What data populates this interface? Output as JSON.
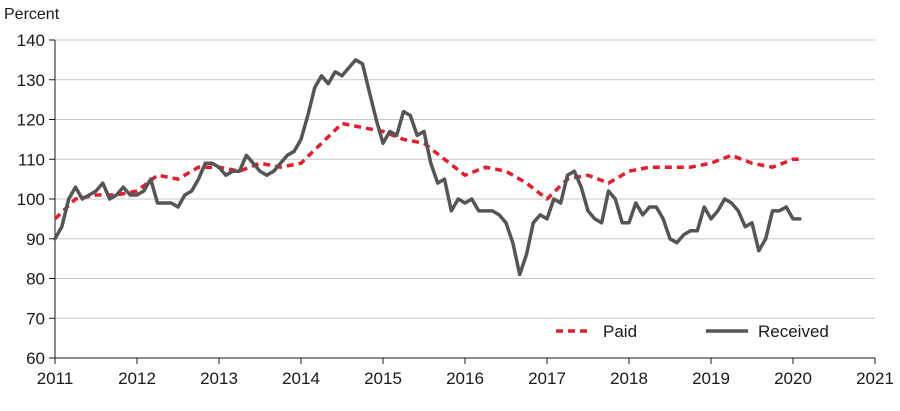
{
  "chart_data": {
    "type": "line",
    "title": "",
    "ylabel": "Percent",
    "xlabel": "",
    "ylim": [
      60,
      140
    ],
    "yticks": [
      60,
      70,
      80,
      90,
      100,
      110,
      120,
      130,
      140
    ],
    "xlim": [
      2011,
      2021
    ],
    "xticks": [
      2011,
      2012,
      2013,
      2014,
      2015,
      2016,
      2017,
      2018,
      2019,
      2020,
      2021
    ],
    "grid": "horizontal",
    "legend_position": "bottom-right",
    "series": [
      {
        "name": "Paid",
        "color": "#e31e2d",
        "style": "dashed",
        "x": [
          2011.0,
          2011.25,
          2011.5,
          2011.75,
          2012.0,
          2012.25,
          2012.5,
          2012.75,
          2013.0,
          2013.25,
          2013.5,
          2013.75,
          2014.0,
          2014.25,
          2014.5,
          2014.75,
          2015.0,
          2015.25,
          2015.5,
          2015.75,
          2016.0,
          2016.25,
          2016.5,
          2016.75,
          2017.0,
          2017.25,
          2017.5,
          2017.75,
          2018.0,
          2018.25,
          2018.5,
          2018.75,
          2019.0,
          2019.25,
          2019.5,
          2019.75,
          2020.0,
          2020.083
        ],
        "values": [
          95,
          100,
          101,
          101,
          102,
          106,
          105,
          108,
          108,
          107,
          109,
          108,
          109,
          114,
          119,
          118,
          117,
          115,
          114,
          110,
          106,
          108,
          107,
          104,
          100,
          105,
          106,
          104,
          107,
          108,
          108,
          108,
          109,
          111,
          109,
          108,
          110,
          110
        ]
      },
      {
        "name": "Received",
        "color": "#555555",
        "style": "solid",
        "x": [
          2011.0,
          2011.083,
          2011.167,
          2011.25,
          2011.333,
          2011.417,
          2011.5,
          2011.583,
          2011.667,
          2011.75,
          2011.833,
          2011.917,
          2012.0,
          2012.083,
          2012.167,
          2012.25,
          2012.333,
          2012.417,
          2012.5,
          2012.583,
          2012.667,
          2012.75,
          2012.833,
          2012.917,
          2013.0,
          2013.083,
          2013.167,
          2013.25,
          2013.333,
          2013.417,
          2013.5,
          2013.583,
          2013.667,
          2013.75,
          2013.833,
          2013.917,
          2014.0,
          2014.083,
          2014.167,
          2014.25,
          2014.333,
          2014.417,
          2014.5,
          2014.583,
          2014.667,
          2014.75,
          2014.833,
          2014.917,
          2015.0,
          2015.083,
          2015.167,
          2015.25,
          2015.333,
          2015.417,
          2015.5,
          2015.583,
          2015.667,
          2015.75,
          2015.833,
          2015.917,
          2016.0,
          2016.083,
          2016.167,
          2016.25,
          2016.333,
          2016.417,
          2016.5,
          2016.583,
          2016.667,
          2016.75,
          2016.833,
          2016.917,
          2017.0,
          2017.083,
          2017.167,
          2017.25,
          2017.333,
          2017.417,
          2017.5,
          2017.583,
          2017.667,
          2017.75,
          2017.833,
          2017.917,
          2018.0,
          2018.083,
          2018.167,
          2018.25,
          2018.333,
          2018.417,
          2018.5,
          2018.583,
          2018.667,
          2018.75,
          2018.833,
          2018.917,
          2019.0,
          2019.083,
          2019.167,
          2019.25,
          2019.333,
          2019.417,
          2019.5,
          2019.583,
          2019.667,
          2019.75,
          2019.833,
          2019.917,
          2020.0,
          2020.083
        ],
        "values": [
          90,
          93,
          100,
          103,
          100,
          101,
          102,
          104,
          100,
          101,
          103,
          101,
          101,
          102,
          105,
          99,
          99,
          99,
          98,
          101,
          102,
          105,
          109,
          109,
          108,
          106,
          107,
          107,
          111,
          109,
          107,
          106,
          107,
          109,
          111,
          112,
          115,
          121,
          128,
          131,
          129,
          132,
          131,
          133,
          135,
          134,
          127,
          120,
          114,
          117,
          116,
          122,
          121,
          116,
          117,
          109,
          104,
          105,
          97,
          100,
          99,
          100,
          97,
          97,
          97,
          96,
          94,
          89,
          81,
          86,
          94,
          96,
          95,
          100,
          99,
          106,
          107,
          103,
          97,
          95,
          94,
          102,
          100,
          94,
          94,
          99,
          96,
          98,
          98,
          95,
          90,
          89,
          91,
          92,
          92,
          98,
          95,
          97,
          100,
          99,
          97,
          93,
          94,
          87,
          90,
          97,
          97,
          98,
          95,
          95
        ]
      }
    ]
  }
}
